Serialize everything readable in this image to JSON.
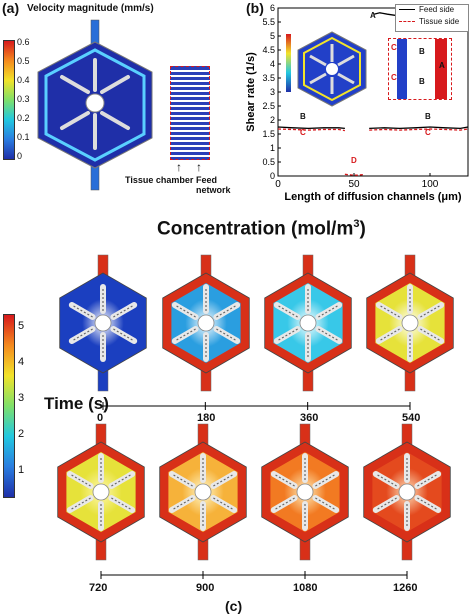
{
  "panel_a": {
    "label": "(a)",
    "title": "Velocity magnitude (mm/s)",
    "colorbar_ticks": [
      "0.6",
      "0.5",
      "0.4",
      "0.3",
      "0.2",
      "0.1",
      "0"
    ],
    "annotation_left": "Tissue chamber",
    "annotation_right": "Feed network",
    "colors": {
      "low": "#1f2fa8",
      "high": "#d7191c"
    }
  },
  "panel_b": {
    "label": "(b)",
    "legend": [
      "Feed side",
      "Tissue side"
    ],
    "inset_markers": [
      "C",
      "B",
      "A",
      "C",
      "B"
    ],
    "region_labels": {
      "A": "A",
      "B1": "B",
      "B2": "B",
      "C1": "C",
      "C2": "C",
      "D": "D"
    },
    "inset_colorbar_ticks": [
      "7",
      "6",
      "5",
      "4",
      "3",
      "2",
      "1"
    ]
  },
  "panel_c": {
    "label": "(c)",
    "title": "Concentration (mol/m",
    "title_sup": "3",
    "title_close": ")",
    "colorbar_ticks": [
      "5",
      "4",
      "3",
      "2",
      "1"
    ],
    "time_label": "Time (s)",
    "times_row1": [
      "0",
      "180",
      "360",
      "540"
    ],
    "times_row2": [
      "720",
      "900",
      "1080",
      "1260"
    ],
    "colors": {
      "c0": "#1b3fc0",
      "c540": "#e6e23a",
      "c1260": "#d83018"
    }
  },
  "chart_data": {
    "type": "line",
    "title": "",
    "xlabel": "Length of diffusion channels (μm)",
    "ylabel": "Shear rate (1/s)",
    "xlim": [
      0,
      125
    ],
    "ylim": [
      0,
      6
    ],
    "x_ticks": [
      "0",
      "50",
      "100"
    ],
    "y_ticks": [
      "0",
      "0.5",
      "1",
      "1.5",
      "2",
      "2.5",
      "3",
      "3.5",
      "4",
      "4.5",
      "5",
      "5.5",
      "6"
    ],
    "grid": false,
    "legend_position": "top-right",
    "series": [
      {
        "name": "Feed side",
        "color": "#000000",
        "x": [
          0,
          10,
          20,
          30,
          40,
          44,
          54,
          60,
          70,
          80,
          90,
          100,
          110,
          120,
          125
        ],
        "y": [
          1.75,
          1.72,
          1.7,
          1.72,
          1.72,
          1.7,
          null,
          1.7,
          1.72,
          1.7,
          1.72,
          1.75,
          1.72,
          1.7,
          1.75
        ]
      },
      {
        "name": "Tissue side",
        "color": "#d7191c",
        "x": [
          0,
          10,
          20,
          30,
          40,
          44,
          54,
          60,
          70,
          80,
          90,
          100,
          110,
          120,
          125
        ],
        "y": [
          1.68,
          1.66,
          1.64,
          1.66,
          1.66,
          1.62,
          null,
          1.64,
          1.66,
          1.64,
          1.66,
          1.68,
          1.66,
          1.64,
          1.68
        ]
      },
      {
        "name": "",
        "color": "#000000",
        "x": [
          63,
          67,
          72,
          77
        ],
        "y": [
          5.78,
          5.83,
          5.78,
          5.74
        ]
      },
      {
        "name": "",
        "color": "#d7191c",
        "x": [
          44,
          48,
          52,
          56
        ],
        "y": [
          0.06,
          0.04,
          0.03,
          0.05
        ]
      }
    ]
  }
}
